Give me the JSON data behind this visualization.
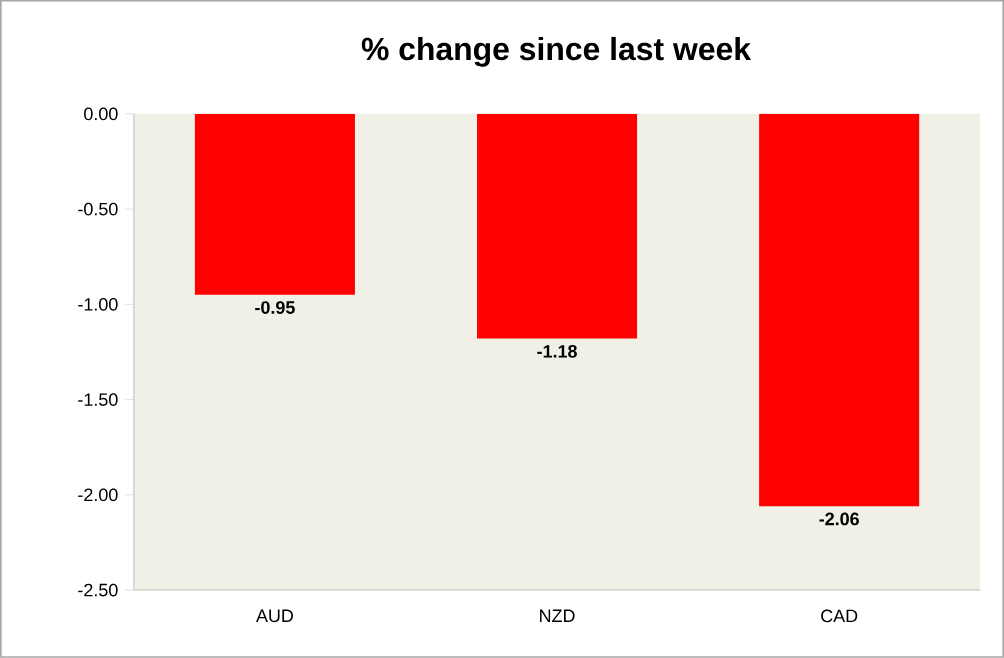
{
  "chart_data": {
    "type": "bar",
    "title": "% change since last week",
    "categories": [
      "AUD",
      "NZD",
      "CAD"
    ],
    "values": [
      -0.95,
      -1.18,
      -2.06
    ],
    "color": "#ff0000",
    "ylim": [
      -2.5,
      0
    ],
    "yticks": [
      {
        "value": -2.5,
        "label": "-2.50"
      },
      {
        "value": -2.0,
        "label": "-2.00"
      },
      {
        "value": -1.5,
        "label": "-1.50"
      },
      {
        "value": -1.0,
        "label": "-1.00"
      },
      {
        "value": -0.5,
        "label": "-0.50"
      },
      {
        "value": 0,
        "label": "0.00"
      }
    ],
    "data_labels": true
  }
}
